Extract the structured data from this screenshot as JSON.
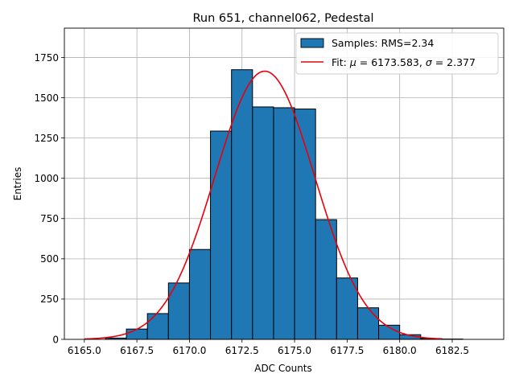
{
  "chart_data": {
    "type": "bar",
    "title": "Run 651, channel062, Pedestal",
    "xlabel": "ADC Counts",
    "ylabel": "Entries",
    "xlim": [
      6164.05,
      6184.95
    ],
    "ylim": [
      0,
      1932
    ],
    "xticks": [
      6165.0,
      6167.5,
      6170.0,
      6172.5,
      6175.0,
      6177.5,
      6180.0,
      6182.5
    ],
    "xtick_labels": [
      "6165.0",
      "6167.5",
      "6170.0",
      "6172.5",
      "6175.0",
      "6177.5",
      "6180.0",
      "6182.5"
    ],
    "yticks": [
      0,
      250,
      500,
      750,
      1000,
      1250,
      1500,
      1750
    ],
    "ytick_labels": [
      "0",
      "250",
      "500",
      "750",
      "1000",
      "1250",
      "1500",
      "1750"
    ],
    "grid": true,
    "bin_edges": [
      6166,
      6167,
      6168,
      6169,
      6170,
      6171,
      6172,
      6173,
      6174,
      6175,
      6176,
      6177,
      6178,
      6179,
      6180,
      6181,
      6182,
      6183
    ],
    "counts": [
      8,
      64,
      160,
      350,
      558,
      1293,
      1674,
      1443,
      1438,
      1430,
      743,
      381,
      196,
      88,
      29,
      5,
      2
    ],
    "fit": {
      "mu": 6173.583,
      "sigma": 2.377,
      "amplitude": 1665,
      "x_range": [
        6165,
        6182
      ]
    },
    "legend": {
      "position": "top-right",
      "entries": [
        {
          "label": "Samples: RMS=2.34",
          "kind": "patch"
        },
        {
          "label_prefix": "Fit: ",
          "mu_symbol": "μ",
          "mu_text": " = 6173.583, ",
          "sigma_symbol": "σ",
          "sigma_text": " = 2.377",
          "kind": "line"
        }
      ]
    },
    "colors": {
      "bar": "#1f77b4",
      "bar_edge": "#000000",
      "fit": "#e8000b",
      "grid": "#b0b0b0"
    }
  }
}
